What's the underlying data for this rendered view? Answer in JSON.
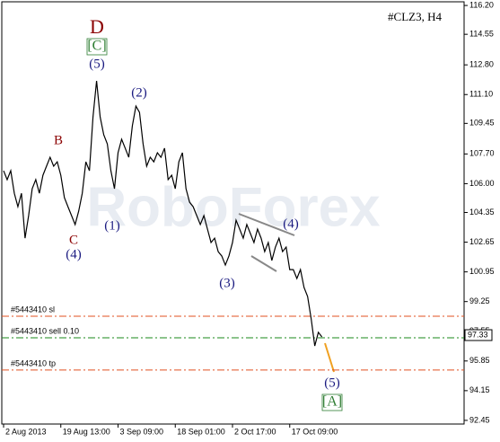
{
  "chart_data": {
    "type": "line",
    "title": "#CLZ3, H4",
    "watermark": "RoboForex",
    "x": [
      0,
      1,
      2,
      3,
      4,
      5,
      6,
      7,
      8,
      9,
      10,
      11,
      12,
      13,
      14,
      15,
      16,
      17,
      18,
      19,
      20,
      21,
      22,
      23,
      24,
      25,
      26,
      27,
      28,
      29,
      30,
      31,
      32,
      33,
      34,
      35,
      36,
      37,
      38,
      39,
      40,
      41,
      42,
      43,
      44,
      45,
      46,
      47,
      48,
      49,
      50,
      51,
      52,
      53,
      54,
      55,
      56,
      57,
      58,
      59,
      60,
      61,
      62,
      63,
      64,
      65,
      66,
      67,
      68,
      69,
      70,
      71,
      72,
      73,
      74,
      75,
      76,
      77,
      78,
      79,
      80,
      81,
      82,
      83,
      84,
      85,
      86,
      87,
      88,
      89
    ],
    "series": [
      {
        "name": "CLZ3",
        "color": "#000000",
        "values": [
          106.74,
          106.23,
          106.74,
          105.45,
          104.68,
          105.45,
          102.88,
          104.17,
          105.71,
          106.23,
          105.45,
          106.48,
          107.0,
          107.51,
          107.0,
          107.25,
          106.48,
          105.2,
          104.68,
          104.17,
          103.66,
          104.43,
          105.45,
          107.25,
          106.74,
          109.82,
          111.88,
          109.82,
          108.8,
          108.28,
          106.74,
          105.71,
          107.77,
          108.54,
          108.03,
          107.51,
          109.31,
          110.44,
          110.08,
          108.28,
          107.0,
          107.51,
          107.25,
          107.77,
          107.51,
          108.03,
          106.23,
          106.48,
          105.71,
          107.25,
          107.77,
          105.71,
          104.94,
          104.68,
          104.17,
          103.66,
          104.17,
          103.4,
          102.63,
          102.88,
          102.11,
          101.86,
          101.34,
          101.86,
          102.63,
          103.91,
          103.4,
          102.88,
          103.66,
          103.15,
          102.63,
          103.4,
          102.88,
          102.11,
          102.63,
          101.6,
          102.37,
          102.88,
          102.11,
          102.37,
          101.08,
          101.08,
          100.57,
          101.08,
          100.06,
          99.54,
          98.26,
          96.71,
          97.49,
          97.23
        ]
      }
    ],
    "xlim": [
      -0.5,
      128.75
    ],
    "xticks": [
      {
        "value": 0,
        "label": "2 Aug 2013"
      },
      {
        "value": 16,
        "label": "19 Aug 13:00"
      },
      {
        "value": 32,
        "label": "3 Sep 09:00"
      },
      {
        "value": 48,
        "label": "18 Sep 01:00"
      },
      {
        "value": 64,
        "label": "2 Oct 17:00"
      },
      {
        "value": 80,
        "label": "17 Oct 09:00"
      }
    ],
    "ylim": [
      92.24,
      116.41
    ],
    "yticks": [
      {
        "value": 116.2,
        "label": "116.20"
      },
      {
        "value": 114.55,
        "label": "114.55"
      },
      {
        "value": 112.8,
        "label": "112.80"
      },
      {
        "value": 111.1,
        "label": "111.10"
      },
      {
        "value": 109.45,
        "label": "109.45"
      },
      {
        "value": 107.7,
        "label": "107.70"
      },
      {
        "value": 106.0,
        "label": "106.00"
      },
      {
        "value": 104.35,
        "label": "104.35"
      },
      {
        "value": 102.65,
        "label": "102.65"
      },
      {
        "value": 100.95,
        "label": "100.95"
      },
      {
        "value": 99.25,
        "label": "99.25"
      },
      {
        "value": 97.55,
        "label": "97.55"
      },
      {
        "value": 95.85,
        "label": "95.85"
      },
      {
        "value": 94.15,
        "label": "94.15"
      },
      {
        "value": 92.45,
        "label": "92.45"
      }
    ],
    "current_price": {
      "value": 97.33,
      "label": "97.33"
    },
    "levels": [
      {
        "label": "#5443410 sl",
        "value": 98.41,
        "color": "#e05020"
      },
      {
        "label": "#5443410 sell 0.10",
        "value": 97.18,
        "color": "#1a8a1a"
      },
      {
        "label": "#5443410 tp",
        "value": 95.33,
        "color": "#e05020"
      }
    ],
    "annotations": [
      {
        "text": "D",
        "color": "#8b0000"
      },
      {
        "text": "[C]",
        "color": "#2e7d32"
      },
      {
        "text": "(5)",
        "color": "#1a1a80"
      },
      {
        "text": "B",
        "color": "#8b0000"
      },
      {
        "text": "C",
        "color": "#8b0000"
      },
      {
        "text": "(4)",
        "color": "#1a1a80"
      },
      {
        "text": "(1)",
        "color": "#1a1a80"
      },
      {
        "text": "(2)",
        "color": "#1a1a80"
      },
      {
        "text": "(3)",
        "color": "#1a1a80"
      },
      {
        "text": "(4)",
        "color": "#1a1a80"
      },
      {
        "text": "(5)",
        "color": "#1a1a80"
      },
      {
        "text": "[A]",
        "color": "#2e7d32"
      }
    ]
  }
}
